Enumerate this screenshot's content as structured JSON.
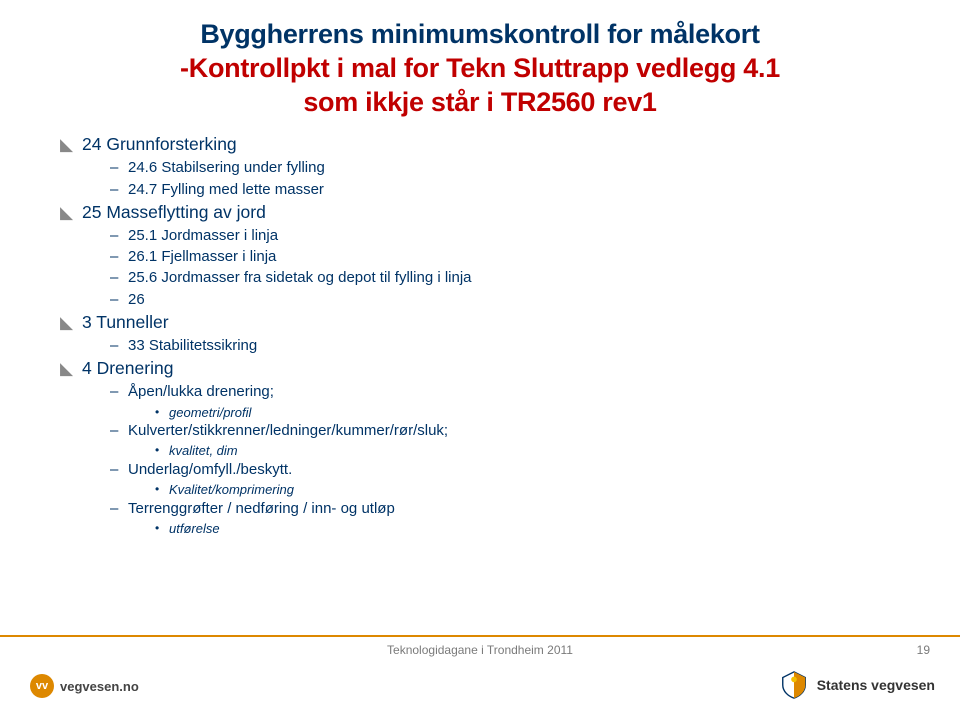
{
  "title": {
    "line1": "Byggherrens minimumskontroll for målekort",
    "line2_red_prefix": "-",
    "line2": "Kontrollpkt i mal for Tekn Sluttrapp vedlegg 4.1",
    "line3": "som ikkje står i TR2560 rev1"
  },
  "items": [
    {
      "level": 1,
      "text": "24 Grunnforsterking"
    },
    {
      "level": 2,
      "text": "24.6 Stabilsering under fylling"
    },
    {
      "level": 2,
      "text": "24.7 Fylling med lette masser"
    },
    {
      "level": 1,
      "text": "25 Masseflytting av jord"
    },
    {
      "level": 2,
      "text": "25.1 Jordmasser i linja"
    },
    {
      "level": 2,
      "text": "26.1 Fjellmasser i linja"
    },
    {
      "level": 2,
      "text": "25.6 Jordmasser fra sidetak og depot til fylling i linja"
    },
    {
      "level": 2,
      "text": "26"
    },
    {
      "level": 1,
      "text": "3 Tunneller"
    },
    {
      "level": 2,
      "text": "33 Stabilitetssikring"
    },
    {
      "level": 1,
      "text": "4 Drenering"
    },
    {
      "level": 2,
      "text": "Åpen/lukka drenering;"
    },
    {
      "level": 3,
      "text": "geometri/profil"
    },
    {
      "level": 2,
      "text": "Kulverter/stikkrenner/ledninger/kummer/rør/sluk;"
    },
    {
      "level": 3,
      "text": "kvalitet, dim"
    },
    {
      "level": 2,
      "text": "Underlag/omfyll./beskytt."
    },
    {
      "level": 3,
      "text": "Kvalitet/komprimering"
    },
    {
      "level": 2,
      "text": "Terrenggrøfter / nedføring / inn- og utløp"
    },
    {
      "level": 3,
      "text": "utførelse"
    }
  ],
  "footer": {
    "text": "Teknologidagane i Trondheim 2011",
    "page": "19",
    "left_brand": "vegvesen.no",
    "left_brand_short": "vv",
    "right_brand": "Statens vegvesen"
  },
  "colors": {
    "title": "#003366",
    "title_red": "#c00000",
    "body": "#003366",
    "footer_line": "#dd8800",
    "footer_text": "#7a7a7a",
    "lvl1_bullet": "#888888"
  }
}
